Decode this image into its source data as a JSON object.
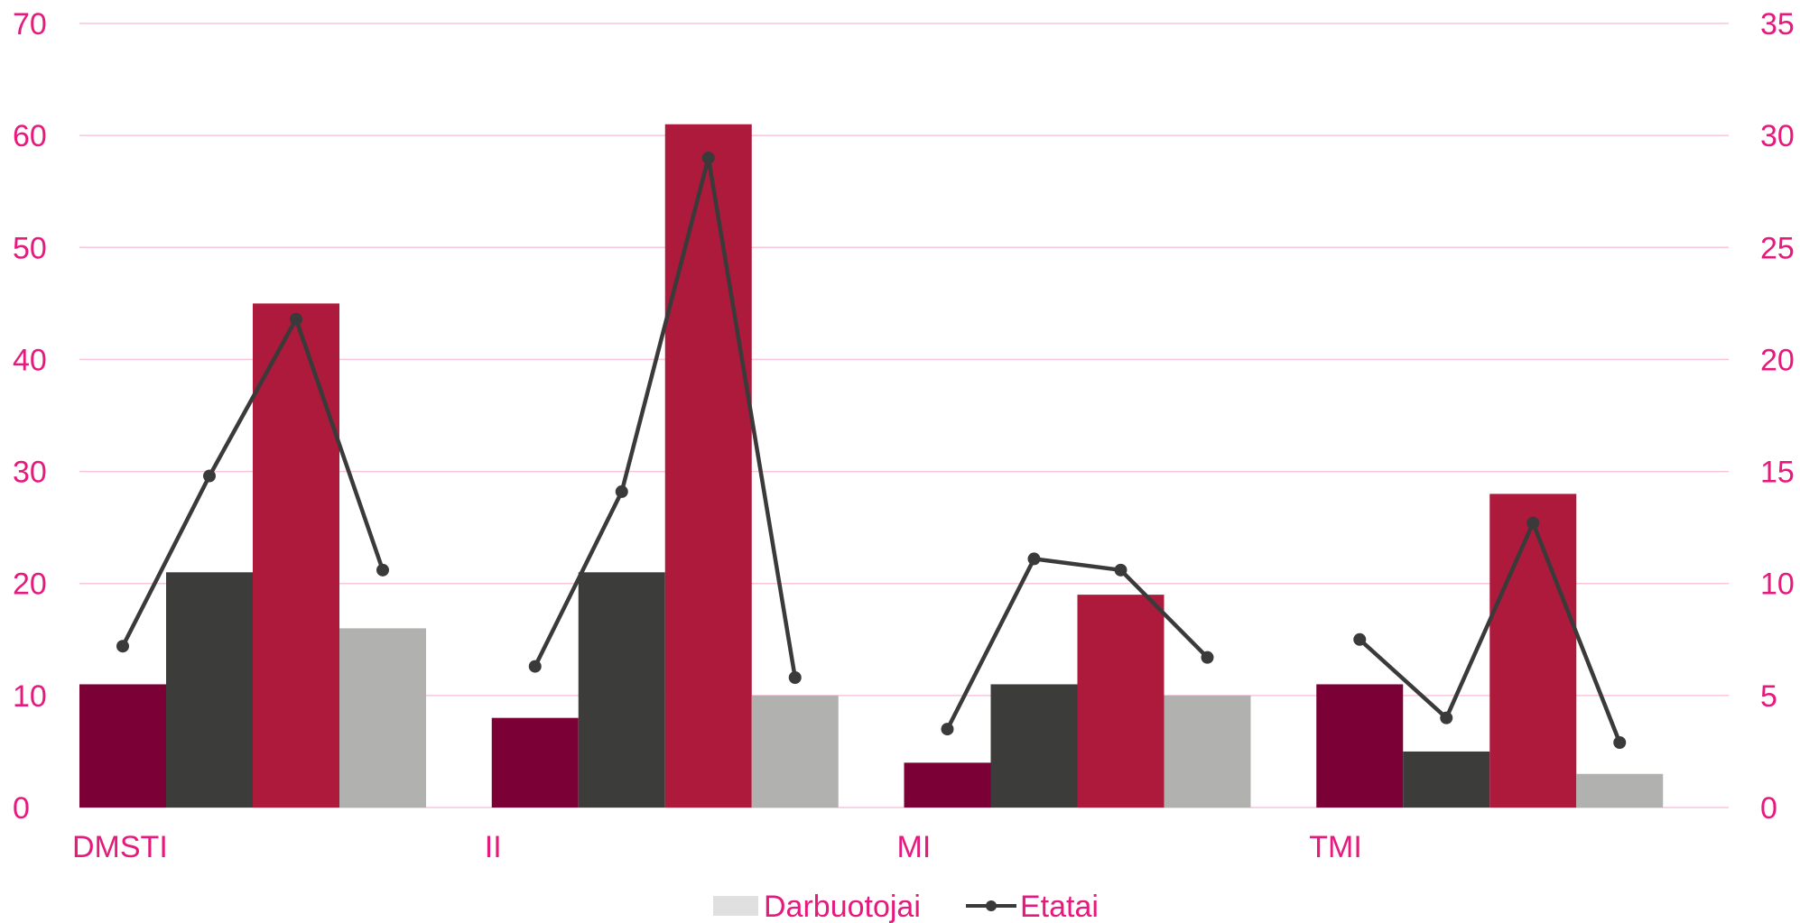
{
  "colors": {
    "text": "#e6197d",
    "grid": "#f7c6dd",
    "line": "#3a3a3a",
    "legend_swatch": "#e0e0e0"
  },
  "chart_data": {
    "type": "bar",
    "categories": [
      "DMSTI",
      "II",
      "MI",
      "TMI"
    ],
    "bar_series": [
      {
        "color": "#7a0036",
        "values": [
          11,
          8,
          4,
          11
        ]
      },
      {
        "color": "#3c3c3b",
        "values": [
          21,
          21,
          11,
          5
        ]
      },
      {
        "color": "#ae1a3b",
        "values": [
          45,
          61,
          19,
          28
        ]
      },
      {
        "color": "#b1b1b0",
        "values": [
          16,
          10,
          10,
          3
        ]
      }
    ],
    "line_series": {
      "axis": "right",
      "values": [
        [
          7.2,
          14.8,
          21.8,
          10.6
        ],
        [
          6.3,
          14.1,
          29.0,
          5.8
        ],
        [
          3.5,
          11.1,
          10.6,
          6.7
        ],
        [
          7.5,
          4.0,
          12.7,
          2.9
        ]
      ]
    },
    "y_left": {
      "min": 0,
      "max": 70,
      "ticks": [
        0,
        10,
        20,
        30,
        40,
        50,
        60,
        70
      ]
    },
    "y_right": {
      "min": 0,
      "max": 35,
      "ticks": [
        0,
        5,
        10,
        15,
        20,
        25,
        30,
        35
      ]
    },
    "grid": true,
    "legend": {
      "position": "bottom",
      "items": [
        {
          "label": "Darbuotojai",
          "kind": "bar"
        },
        {
          "label": "Etatai",
          "kind": "line"
        }
      ]
    }
  }
}
